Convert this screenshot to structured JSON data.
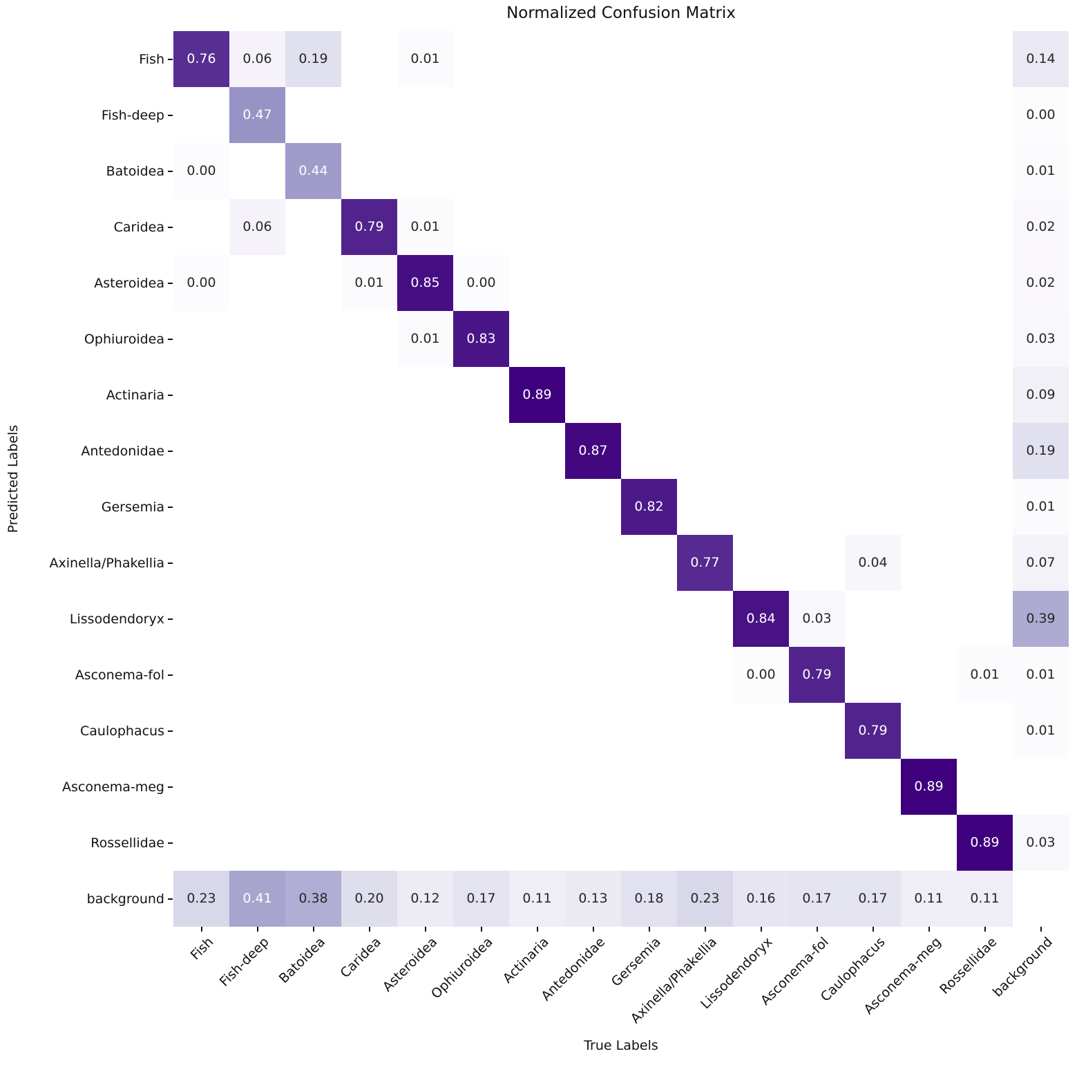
{
  "title": "Normalized Confusion Matrix",
  "chart_data": {
    "type": "heatmap",
    "title": "Normalized Confusion Matrix",
    "xlabel": "True Labels",
    "ylabel": "Predicted Labels",
    "categories": [
      "Fish",
      "Fish-deep",
      "Batoidea",
      "Caridea",
      "Asteroidea",
      "Ophiuroidea",
      "Actinaria",
      "Antedonidae",
      "Gersemia",
      "Axinella/Phakellia",
      "Lissodendoryx",
      "Asconema-fol",
      "Caulophacus",
      "Asconema-meg",
      "Rossellidae",
      "background"
    ],
    "rows": [
      {
        "label": "Fish",
        "values": [
          0.76,
          0.06,
          0.19,
          null,
          0.01,
          null,
          null,
          null,
          null,
          null,
          null,
          null,
          null,
          null,
          null,
          0.14
        ]
      },
      {
        "label": "Fish-deep",
        "values": [
          null,
          0.47,
          null,
          null,
          null,
          null,
          null,
          null,
          null,
          null,
          null,
          null,
          null,
          null,
          null,
          0.0
        ]
      },
      {
        "label": "Batoidea",
        "values": [
          0.0,
          null,
          0.44,
          null,
          null,
          null,
          null,
          null,
          null,
          null,
          null,
          null,
          null,
          null,
          null,
          0.01
        ]
      },
      {
        "label": "Caridea",
        "values": [
          null,
          0.06,
          null,
          0.79,
          0.01,
          null,
          null,
          null,
          null,
          null,
          null,
          null,
          null,
          null,
          null,
          0.02
        ]
      },
      {
        "label": "Asteroidea",
        "values": [
          0.0,
          null,
          null,
          0.01,
          0.85,
          0.0,
          null,
          null,
          null,
          null,
          null,
          null,
          null,
          null,
          null,
          0.02
        ]
      },
      {
        "label": "Ophiuroidea",
        "values": [
          null,
          null,
          null,
          null,
          0.01,
          0.83,
          null,
          null,
          null,
          null,
          null,
          null,
          null,
          null,
          null,
          0.03
        ]
      },
      {
        "label": "Actinaria",
        "values": [
          null,
          null,
          null,
          null,
          null,
          null,
          0.89,
          null,
          null,
          null,
          null,
          null,
          null,
          null,
          null,
          0.09
        ]
      },
      {
        "label": "Antedonidae",
        "values": [
          null,
          null,
          null,
          null,
          null,
          null,
          null,
          0.87,
          null,
          null,
          null,
          null,
          null,
          null,
          null,
          0.19
        ]
      },
      {
        "label": "Gersemia",
        "values": [
          null,
          null,
          null,
          null,
          null,
          null,
          null,
          null,
          0.82,
          null,
          null,
          null,
          null,
          null,
          null,
          0.01
        ]
      },
      {
        "label": "Axinella/Phakellia",
        "values": [
          null,
          null,
          null,
          null,
          null,
          null,
          null,
          null,
          null,
          0.77,
          null,
          null,
          0.04,
          null,
          null,
          0.07
        ]
      },
      {
        "label": "Lissodendoryx",
        "values": [
          null,
          null,
          null,
          null,
          null,
          null,
          null,
          null,
          null,
          null,
          0.84,
          0.03,
          null,
          null,
          null,
          0.39
        ]
      },
      {
        "label": "Asconema-fol",
        "values": [
          null,
          null,
          null,
          null,
          null,
          null,
          null,
          null,
          null,
          null,
          0.0,
          0.79,
          null,
          null,
          0.01,
          0.01
        ]
      },
      {
        "label": "Caulophacus",
        "values": [
          null,
          null,
          null,
          null,
          null,
          null,
          null,
          null,
          null,
          null,
          null,
          null,
          0.79,
          null,
          null,
          0.01
        ]
      },
      {
        "label": "Asconema-meg",
        "values": [
          null,
          null,
          null,
          null,
          null,
          null,
          null,
          null,
          null,
          null,
          null,
          null,
          null,
          0.89,
          null,
          null
        ]
      },
      {
        "label": "Rossellidae",
        "values": [
          null,
          null,
          null,
          null,
          null,
          null,
          null,
          null,
          null,
          null,
          null,
          null,
          null,
          null,
          0.89,
          0.03
        ]
      },
      {
        "label": "background",
        "values": [
          0.23,
          0.41,
          0.38,
          0.2,
          0.12,
          0.17,
          0.11,
          0.13,
          0.18,
          0.23,
          0.16,
          0.17,
          0.17,
          0.11,
          0.11,
          null
        ]
      }
    ],
    "value_format": "2-decimals",
    "colormap": {
      "name": "Purples",
      "vmin": 0.0,
      "vmax": 0.89,
      "stops": [
        "#fcfbfd",
        "#efedf5",
        "#dadaeb",
        "#bcbddc",
        "#9e9ac8",
        "#807dba",
        "#6a51a3",
        "#54278f",
        "#3f007d"
      ]
    },
    "empty_cell_color": "#ffffff",
    "annotation_color_dark": "#262626",
    "annotation_color_light": "#ffffff",
    "legend": "none",
    "grid": "off"
  },
  "colors": {
    "figure_background": "#ffffff",
    "text": "#111111"
  }
}
